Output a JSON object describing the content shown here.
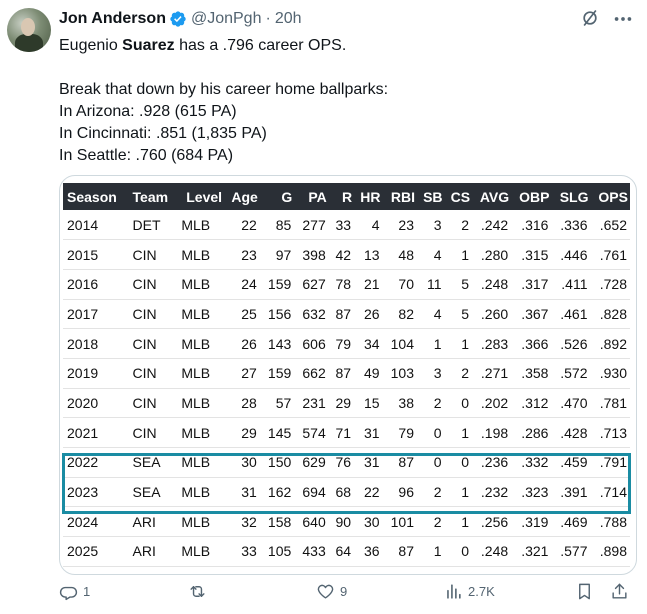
{
  "author": {
    "name": "Jon Anderson",
    "handle": "@JonPgh",
    "separator": "·",
    "time": "20h"
  },
  "tweet": {
    "line1_pre": "Eugenio ",
    "line1_bold": "Suarez",
    "line1_post": " has a .796 career OPS.",
    "line2": "Break that down by his career home ballparks:",
    "line3": "In Arizona: .928 (615 PA)",
    "line4": "In Cincinnati: .851 (1,835 PA)",
    "line5": "In Seattle: .760 (684 PA)"
  },
  "table": {
    "headers": [
      "Season",
      "Team",
      "Level",
      "Age",
      "G",
      "PA",
      "R",
      "HR",
      "RBI",
      "SB",
      "CS",
      "AVG",
      "OBP",
      "SLG",
      "OPS"
    ],
    "rows": [
      [
        "2014",
        "DET",
        "MLB",
        "22",
        "85",
        "277",
        "33",
        "4",
        "23",
        "3",
        "2",
        ".242",
        ".316",
        ".336",
        ".652"
      ],
      [
        "2015",
        "CIN",
        "MLB",
        "23",
        "97",
        "398",
        "42",
        "13",
        "48",
        "4",
        "1",
        ".280",
        ".315",
        ".446",
        ".761"
      ],
      [
        "2016",
        "CIN",
        "MLB",
        "24",
        "159",
        "627",
        "78",
        "21",
        "70",
        "11",
        "5",
        ".248",
        ".317",
        ".411",
        ".728"
      ],
      [
        "2017",
        "CIN",
        "MLB",
        "25",
        "156",
        "632",
        "87",
        "26",
        "82",
        "4",
        "5",
        ".260",
        ".367",
        ".461",
        ".828"
      ],
      [
        "2018",
        "CIN",
        "MLB",
        "26",
        "143",
        "606",
        "79",
        "34",
        "104",
        "1",
        "1",
        ".283",
        ".366",
        ".526",
        ".892"
      ],
      [
        "2019",
        "CIN",
        "MLB",
        "27",
        "159",
        "662",
        "87",
        "49",
        "103",
        "3",
        "2",
        ".271",
        ".358",
        ".572",
        ".930"
      ],
      [
        "2020",
        "CIN",
        "MLB",
        "28",
        "57",
        "231",
        "29",
        "15",
        "38",
        "2",
        "0",
        ".202",
        ".312",
        ".470",
        ".781"
      ],
      [
        "2021",
        "CIN",
        "MLB",
        "29",
        "145",
        "574",
        "71",
        "31",
        "79",
        "0",
        "1",
        ".198",
        ".286",
        ".428",
        ".713"
      ],
      [
        "2022",
        "SEA",
        "MLB",
        "30",
        "150",
        "629",
        "76",
        "31",
        "87",
        "0",
        "0",
        ".236",
        ".332",
        ".459",
        ".791"
      ],
      [
        "2023",
        "SEA",
        "MLB",
        "31",
        "162",
        "694",
        "68",
        "22",
        "96",
        "2",
        "1",
        ".232",
        ".323",
        ".391",
        ".714"
      ],
      [
        "2024",
        "ARI",
        "MLB",
        "32",
        "158",
        "640",
        "90",
        "30",
        "101",
        "2",
        "1",
        ".256",
        ".319",
        ".469",
        ".788"
      ],
      [
        "2025",
        "ARI",
        "MLB",
        "33",
        "105",
        "433",
        "64",
        "36",
        "87",
        "1",
        "0",
        ".248",
        ".321",
        ".577",
        ".898"
      ]
    ],
    "highlight_color": "#1a8ca3"
  },
  "actions": {
    "replies": "1",
    "reposts": "",
    "likes": "9",
    "views": "2.7K"
  },
  "colors": {
    "verified": "#1d9bf0",
    "secondary_text": "#536471",
    "header_bg": "#2a2f36"
  },
  "icons": [
    "verified-badge-icon",
    "grok-icon",
    "more-icon",
    "reply-icon",
    "repost-icon",
    "like-icon",
    "views-icon",
    "bookmark-icon",
    "share-icon"
  ]
}
